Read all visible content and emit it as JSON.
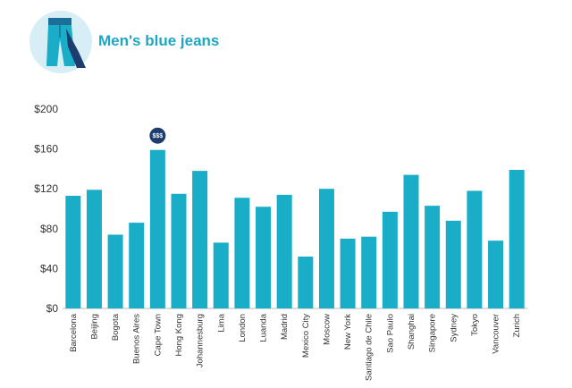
{
  "header": {
    "title": "Men's blue jeans",
    "icon": "jeans-icon"
  },
  "colors": {
    "bar": "#19adc8",
    "icon_circle": "#d7eef6",
    "title": "#1fa6c2",
    "badge": "#1d3d6e",
    "axis": "#bbbbbb"
  },
  "chart_data": {
    "type": "bar",
    "title": "",
    "xlabel": "",
    "ylabel": "",
    "ylim": [
      0,
      200
    ],
    "yticks": [
      0,
      40,
      80,
      120,
      160,
      200
    ],
    "ytick_labels": [
      "$0",
      "$40",
      "$80",
      "$120",
      "$160",
      "$200"
    ],
    "grid": false,
    "categories": [
      "Barcelona",
      "Beijing",
      "Bogota",
      "Buenos Aires",
      "Cape Town",
      "Hong Kong",
      "Johannesburg",
      "Lima",
      "London",
      "Luanda",
      "Madrid",
      "Mexico City",
      "Moscow",
      "New York",
      "Santiago de Chile",
      "Sao Paulo",
      "Shanghai",
      "Singapore",
      "Sydney",
      "Tokyo",
      "Vancouver",
      "Zurich"
    ],
    "values": [
      113,
      119,
      74,
      86,
      159,
      115,
      138,
      66,
      111,
      102,
      114,
      52,
      120,
      70,
      72,
      97,
      134,
      103,
      88,
      118,
      68,
      139
    ],
    "annotation": {
      "category": "Cape Town",
      "label": "$$$"
    }
  }
}
